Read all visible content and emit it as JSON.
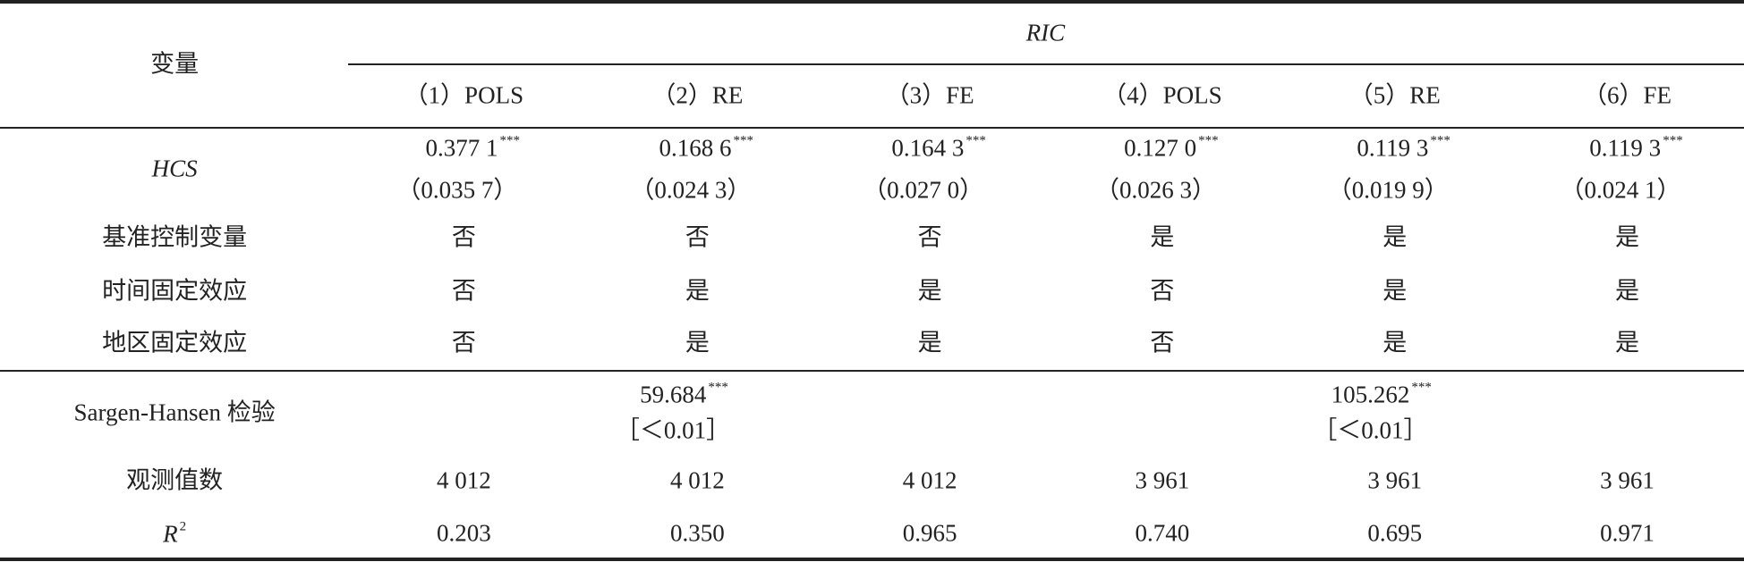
{
  "header": {
    "row_label": "变量",
    "group": "RIC",
    "columns": [
      "（1）POLS",
      "（2）RE",
      "（3）FE",
      "（4）POLS",
      "（5）RE",
      "（6）FE"
    ]
  },
  "rows": [
    {
      "label": "HCS",
      "cells": [
        {
          "coef": "0.377 1",
          "stars": "***",
          "se": "（0.035 7）"
        },
        {
          "coef": "0.168 6",
          "stars": "***",
          "se": "（0.024 3）"
        },
        {
          "coef": "0.164 3",
          "stars": "***",
          "se": "（0.027 0）"
        },
        {
          "coef": "0.127 0",
          "stars": "***",
          "se": "（0.026 3）"
        },
        {
          "coef": "0.119 3",
          "stars": "***",
          "se": "（0.019 9）"
        },
        {
          "coef": "0.119 3",
          "stars": "***",
          "se": "（0.024 1）"
        }
      ]
    },
    {
      "label": "基准控制变量",
      "cells": [
        "否",
        "否",
        "否",
        "是",
        "是",
        "是"
      ]
    },
    {
      "label": "时间固定效应",
      "cells": [
        "否",
        "是",
        "是",
        "否",
        "是",
        "是"
      ]
    },
    {
      "label": "地区固定效应",
      "cells": [
        "否",
        "是",
        "是",
        "否",
        "是",
        "是"
      ]
    },
    {
      "label": "Sargen-Hansen 检验",
      "cells": [
        null,
        {
          "coef": "59.684",
          "stars": "***",
          "p": "［＜0.01］"
        },
        null,
        null,
        {
          "coef": "105.262",
          "stars": "***",
          "p": "［＜0.01］"
        },
        null
      ]
    },
    {
      "label": "观测值数",
      "cells": [
        "4 012",
        "4 012",
        "4 012",
        "3 961",
        "3 961",
        "3 961"
      ]
    },
    {
      "label": {
        "text": "R",
        "sup": "2"
      },
      "cells": [
        "0.203",
        "0.350",
        "0.965",
        "0.740",
        "0.695",
        "0.971"
      ]
    }
  ]
}
